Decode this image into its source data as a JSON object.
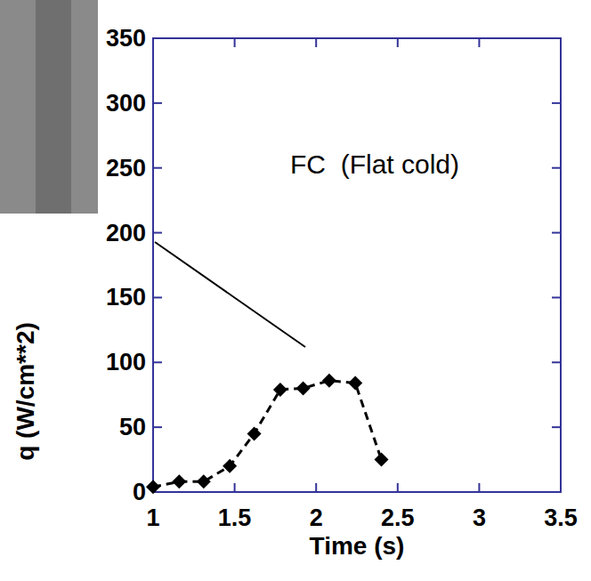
{
  "chart_data": {
    "type": "line",
    "annotation": "FC  (Flat cold)",
    "xlabel": "Time (s)",
    "ylabel": "q (W/cm**2)",
    "x": [
      1.0,
      1.16,
      1.31,
      1.47,
      1.62,
      1.78,
      1.92,
      2.08,
      2.24,
      2.4
    ],
    "series": [
      {
        "values": [
          4,
          8,
          8,
          20,
          45,
          79,
          80,
          86,
          84,
          25
        ],
        "color": "#000000",
        "marker": "diamond",
        "line_style": "dashed"
      }
    ],
    "xlim": [
      1,
      3.5
    ],
    "xticks": [
      1,
      1.5,
      2,
      2.5,
      3,
      3.5
    ],
    "ylim": [
      0,
      350
    ],
    "yticks": [
      0,
      50,
      100,
      150,
      200,
      250,
      300,
      350
    ],
    "grid": false
  }
}
